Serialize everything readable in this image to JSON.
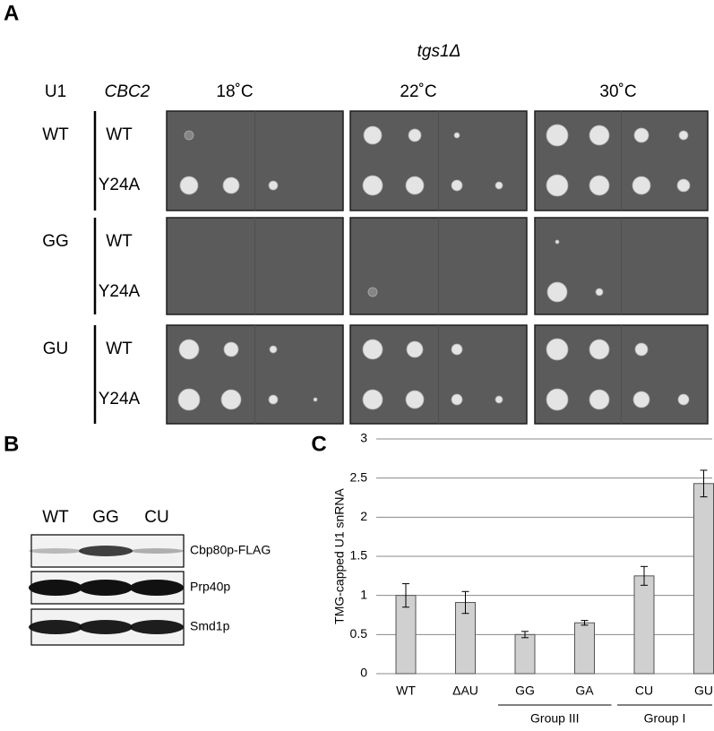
{
  "panel_a": {
    "label": "A",
    "title": "tgs1Δ",
    "headers": [
      "U1",
      "CBC2",
      "18˚C",
      "22˚C",
      "30˚C"
    ],
    "groups": [
      {
        "name": "WT",
        "strains": [
          "WT",
          "Y24A"
        ]
      },
      {
        "name": "GG",
        "strains": [
          "WT",
          "Y24A"
        ]
      },
      {
        "name": "GU",
        "strains": [
          "WT",
          "Y24A"
        ]
      }
    ]
  },
  "panel_b": {
    "label": "B",
    "lanes": [
      "WT",
      "GG",
      "CU"
    ],
    "bands": [
      "Cbp80p-FLAG",
      "Prp40p",
      "Smd1p"
    ]
  },
  "chart_data": {
    "panel_label": "C",
    "type": "bar",
    "y_label": "TMG-capped U1 snRNA",
    "categories": [
      "WT",
      "ΔAU",
      "GG",
      "GA",
      "CU",
      "GU"
    ],
    "values": [
      1.0,
      0.91,
      0.5,
      0.65,
      1.25,
      2.43
    ],
    "errors": [
      0.15,
      0.14,
      0.04,
      0.03,
      0.12,
      0.17
    ],
    "color": "#d0d0d0",
    "ylim": [
      0,
      3
    ],
    "yticks": [
      0,
      0.5,
      1,
      1.5,
      2,
      2.5,
      3
    ],
    "grid": true,
    "groups": [
      {
        "label": "Group III",
        "start": "GG",
        "end": "GA"
      },
      {
        "label": "Group I",
        "start": "CU",
        "end": "GU"
      }
    ]
  }
}
